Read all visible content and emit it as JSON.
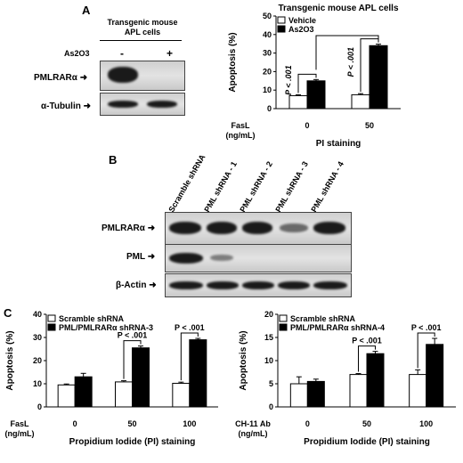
{
  "panelA": {
    "letter": "A",
    "blot_title_1": "Transgenic mouse",
    "blot_title_2": "APL cells",
    "treatment_label": "As2O3",
    "lane_minus": "-",
    "lane_plus": "+",
    "row1": "PMLRARα",
    "row2": "α-Tubulin",
    "arrow": "➜"
  },
  "panelB": {
    "letter": "B",
    "lanes": [
      "Scramble shRNA",
      "PML shRNA - 1",
      "PML shRNA - 2",
      "PML shRNA - 3",
      "PML shRNA - 4"
    ],
    "row1": "PMLRARα",
    "row2": "PML",
    "row3": "β-Actin"
  },
  "panelC": {
    "letter": "C"
  },
  "chart_data": [
    {
      "type": "bar",
      "title": "Transgenic mouse APL cells",
      "ylabel": "Apoptosis (%)",
      "xlabel": "PI staining",
      "x_prefix": "FasL (ng/mL)",
      "categories": [
        "0",
        "50"
      ],
      "ylim": [
        0,
        50
      ],
      "yticks": [
        0,
        10,
        20,
        30,
        40,
        50
      ],
      "legend_position": "top-left",
      "series": [
        {
          "name": "Vehicle",
          "values": [
            7,
            7.5
          ],
          "errors": [
            0.5,
            0.6
          ],
          "color": "#ffffff"
        },
        {
          "name": "As2O3",
          "values": [
            15,
            34
          ],
          "errors": [
            0.7,
            0.8
          ],
          "color": "#000000"
        }
      ],
      "annotations": [
        "P < .001",
        "P < .001"
      ]
    },
    {
      "type": "bar",
      "title": "",
      "ylabel": "Apoptosis (%)",
      "xlabel": "Propidium Iodide (PI) staining",
      "x_prefix": "FasL (ng/mL)",
      "categories": [
        "0",
        "50",
        "100"
      ],
      "ylim": [
        0,
        40
      ],
      "yticks": [
        0,
        10,
        20,
        30,
        40
      ],
      "legend_position": "top-left",
      "series": [
        {
          "name": "Scramble shRNA",
          "values": [
            9.5,
            10.8,
            10.2
          ],
          "errors": [
            0.4,
            0.5,
            0.5
          ],
          "color": "#ffffff"
        },
        {
          "name": "PML/PMLRARα shRNA-3",
          "values": [
            13,
            25.5,
            29
          ],
          "errors": [
            1.5,
            0.8,
            0.6
          ],
          "color": "#000000"
        }
      ],
      "annotations": [
        "P < .001",
        "P < .001"
      ]
    },
    {
      "type": "bar",
      "title": "",
      "ylabel": "Apoptosis (%)",
      "xlabel": "Propidium Iodide (PI) staining",
      "x_prefix": "CH-11 Ab (ng/mL)",
      "categories": [
        "0",
        "50",
        "100"
      ],
      "ylim": [
        0,
        20
      ],
      "yticks": [
        0,
        5,
        10,
        15,
        20
      ],
      "legend_position": "top-left",
      "series": [
        {
          "name": "Scramble shRNA",
          "values": [
            5,
            7,
            7
          ],
          "errors": [
            1.5,
            0.2,
            1.0
          ],
          "color": "#ffffff"
        },
        {
          "name": "PML/PMLRARα shRNA-4",
          "values": [
            5.5,
            11.5,
            13.5
          ],
          "errors": [
            0.5,
            0.5,
            1.3
          ],
          "color": "#000000"
        }
      ],
      "annotations": [
        "P < .001",
        "P < .001"
      ]
    }
  ]
}
